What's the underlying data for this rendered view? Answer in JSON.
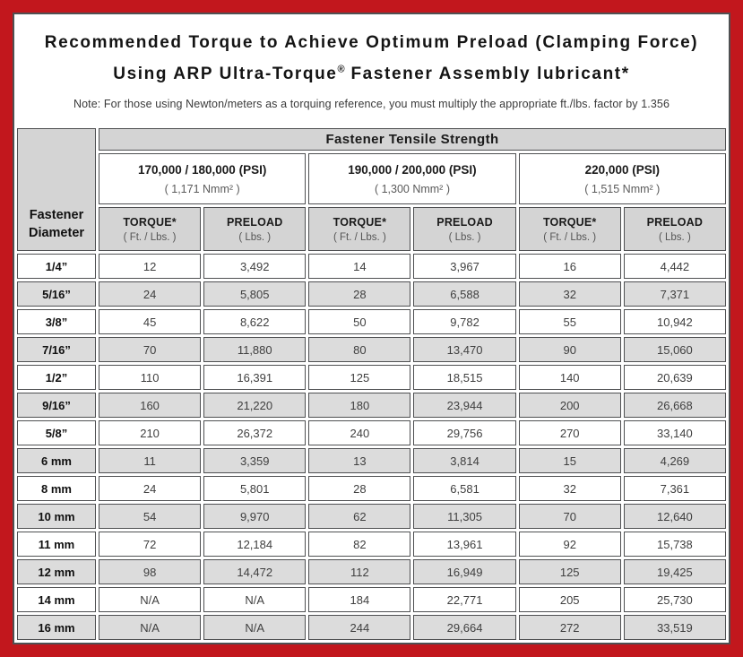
{
  "title": {
    "line1": "Recommended Torque to Achieve Optimum Preload (Clamping Force)",
    "line2_pre": "Using ARP Ultra-Torque",
    "line2_sup": "®",
    "line2_post": " Fastener Assembly lubricant*"
  },
  "note": "Note: For those using Newton/meters as a torquing reference, you must multiply the appropriate ft./lbs. factor by 1.356",
  "table": {
    "tensile_strength_header": "Fastener Tensile Strength",
    "diameter_header_line1": "Fastener",
    "diameter_header_line2": "Diameter",
    "groups": [
      {
        "psi": "170,000 / 180,000 (PSI)",
        "nmm": "( 1,171 Nmm² )"
      },
      {
        "psi": "190,000 / 200,000 (PSI)",
        "nmm": "( 1,300 Nmm² )"
      },
      {
        "psi": "220,000 (PSI)",
        "nmm": "( 1,515 Nmm² )"
      }
    ],
    "subheaders": {
      "torque_label": "TORQUE*",
      "torque_unit": "( Ft. / Lbs. )",
      "preload_label": "PRELOAD",
      "preload_unit": "( Lbs. )"
    },
    "rows": [
      {
        "diameter": "1/4”",
        "values": [
          "12",
          "3,492",
          "14",
          "3,967",
          "16",
          "4,442"
        ]
      },
      {
        "diameter": "5/16”",
        "values": [
          "24",
          "5,805",
          "28",
          "6,588",
          "32",
          "7,371"
        ]
      },
      {
        "diameter": "3/8”",
        "values": [
          "45",
          "8,622",
          "50",
          "9,782",
          "55",
          "10,942"
        ]
      },
      {
        "diameter": "7/16”",
        "values": [
          "70",
          "11,880",
          "80",
          "13,470",
          "90",
          "15,060"
        ]
      },
      {
        "diameter": "1/2”",
        "values": [
          "110",
          "16,391",
          "125",
          "18,515",
          "140",
          "20,639"
        ]
      },
      {
        "diameter": "9/16”",
        "values": [
          "160",
          "21,220",
          "180",
          "23,944",
          "200",
          "26,668"
        ]
      },
      {
        "diameter": "5/8”",
        "values": [
          "210",
          "26,372",
          "240",
          "29,756",
          "270",
          "33,140"
        ]
      },
      {
        "diameter": "6 mm",
        "values": [
          "11",
          "3,359",
          "13",
          "3,814",
          "15",
          "4,269"
        ]
      },
      {
        "diameter": "8 mm",
        "values": [
          "24",
          "5,801",
          "28",
          "6,581",
          "32",
          "7,361"
        ]
      },
      {
        "diameter": "10 mm",
        "values": [
          "54",
          "9,970",
          "62",
          "11,305",
          "70",
          "12,640"
        ]
      },
      {
        "diameter": "11 mm",
        "values": [
          "72",
          "12,184",
          "82",
          "13,961",
          "92",
          "15,738"
        ]
      },
      {
        "diameter": "12 mm",
        "values": [
          "98",
          "14,472",
          "112",
          "16,949",
          "125",
          "19,425"
        ]
      },
      {
        "diameter": "14 mm",
        "values": [
          "N/A",
          "N/A",
          "184",
          "22,771",
          "205",
          "25,730"
        ]
      },
      {
        "diameter": "16 mm",
        "values": [
          "N/A",
          "N/A",
          "244",
          "29,664",
          "272",
          "33,519"
        ]
      }
    ]
  },
  "colors": {
    "frame_red": "#C2171D",
    "header_gray": "#D4D4D4",
    "row_alt_gray": "#DCDCDC",
    "border_dark": "#4F5052"
  }
}
